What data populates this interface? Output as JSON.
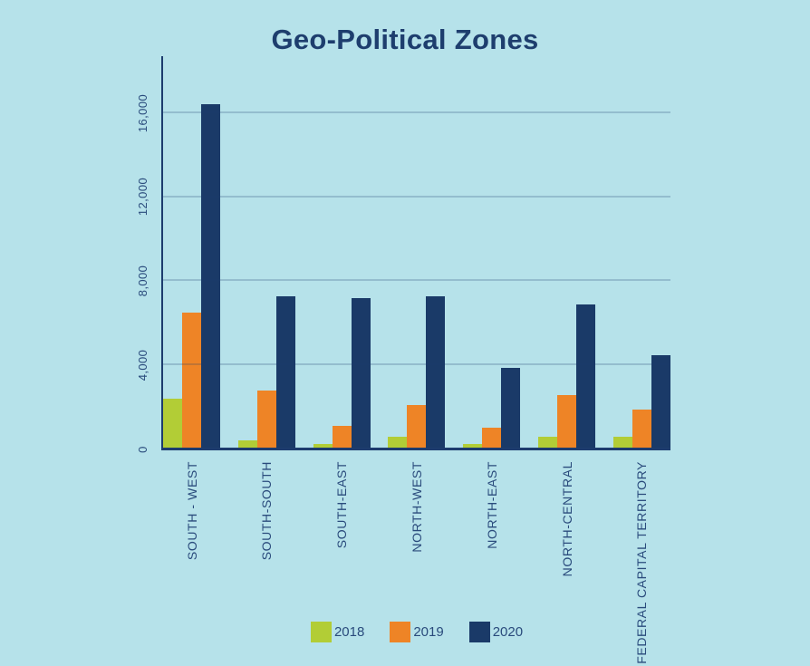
{
  "page": {
    "background": "#b6e2ea"
  },
  "title": "Geo-Political Zones",
  "styles": {
    "title_color": "#1e3e6e",
    "label_color": "#2a4b7c",
    "axis_color": "#1d3c6e",
    "gridline_color": "rgba(29,60,110,0.22)"
  },
  "chart_data": {
    "type": "bar",
    "title": "Geo-Political Zones",
    "categories": [
      "SOUTH - WEST",
      "SOUTH-SOUTH",
      "SOUTH-EAST",
      "NORTH-WEST",
      "NORTH-EAST",
      "NORTH-CENTRAL",
      "FEDERAL CAPITAL TERRITORY"
    ],
    "series": [
      {
        "name": "2018",
        "color": "#b2cd36",
        "values": [
          2400,
          450,
          250,
          600,
          250,
          600,
          600
        ]
      },
      {
        "name": "2019",
        "color": "#ee8426",
        "values": [
          6500,
          2800,
          1100,
          2100,
          1050,
          2600,
          1900
        ]
      },
      {
        "name": "2020",
        "color": "#1a3a68",
        "values": [
          16400,
          7300,
          7200,
          7300,
          3900,
          6900,
          4500
        ]
      }
    ],
    "xlabel": "",
    "ylabel": "",
    "y_ticks": [
      0,
      4000,
      8000,
      12000,
      16000
    ],
    "y_tick_labels": [
      "0",
      "4,000",
      "8,000",
      "12,000",
      "16,000"
    ],
    "ylim": [
      0,
      18700
    ],
    "grid": true,
    "legend_position": "bottom",
    "x_label_rotation": -90,
    "y_tick_rotation": -90
  }
}
